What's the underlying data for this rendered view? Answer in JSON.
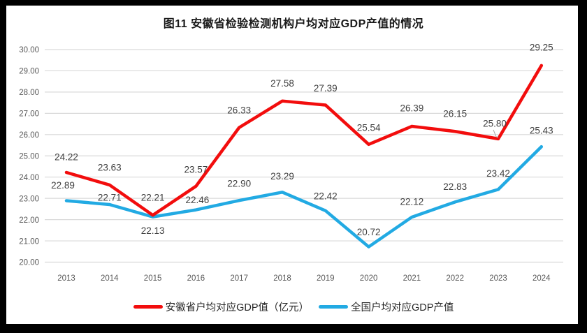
{
  "chart_data": {
    "type": "line",
    "title": "图11 安徽省检验检测机构户均对应GDP产值的情况",
    "categories": [
      "2013",
      "2014",
      "2015",
      "2016",
      "2017",
      "2018",
      "2019",
      "2020",
      "2021",
      "2022",
      "2023",
      "2024"
    ],
    "series": [
      {
        "name": "安徽省户均对应GDP值（亿元）",
        "color": "#f20d0d",
        "values": [
          24.22,
          23.63,
          22.21,
          23.57,
          26.33,
          27.58,
          27.39,
          25.54,
          26.39,
          26.15,
          25.8,
          29.25
        ],
        "label_offsets": [
          [
            0,
            -22
          ],
          [
            0,
            -25
          ],
          [
            0,
            -25
          ],
          [
            0,
            -24
          ],
          [
            0,
            -25
          ],
          [
            0,
            -25
          ],
          [
            0,
            -24
          ],
          [
            0,
            -24
          ],
          [
            0,
            -26
          ],
          [
            0,
            -25
          ],
          [
            -5,
            -22
          ],
          [
            0,
            -26
          ]
        ],
        "callout_index": 10
      },
      {
        "name": "全国户均对应GDP产值",
        "color": "#22aae3",
        "values": [
          22.89,
          22.71,
          22.13,
          22.46,
          22.9,
          23.29,
          22.42,
          20.72,
          22.12,
          22.83,
          23.42,
          25.43
        ],
        "label_offsets": [
          [
            -5,
            -22
          ],
          [
            0,
            -10
          ],
          [
            0,
            20
          ],
          [
            2,
            -14
          ],
          [
            0,
            -24
          ],
          [
            0,
            -23
          ],
          [
            0,
            -21
          ],
          [
            0,
            -21
          ],
          [
            0,
            -22
          ],
          [
            0,
            -22
          ],
          [
            0,
            -23
          ],
          [
            0,
            -23
          ]
        ]
      }
    ],
    "ylim": [
      20,
      30
    ],
    "ytick_step": 1,
    "yticks": [
      "20.00",
      "21.00",
      "22.00",
      "23.00",
      "24.00",
      "25.00",
      "26.00",
      "27.00",
      "28.00",
      "29.00",
      "30.00"
    ],
    "grid": "horizontal",
    "legend_position": "bottom",
    "colors": {
      "grid": "#d9d9d9",
      "axis_text": "#595959",
      "data_label": "#404040",
      "callout": "#a6a6a6",
      "frame": "#000000"
    }
  }
}
